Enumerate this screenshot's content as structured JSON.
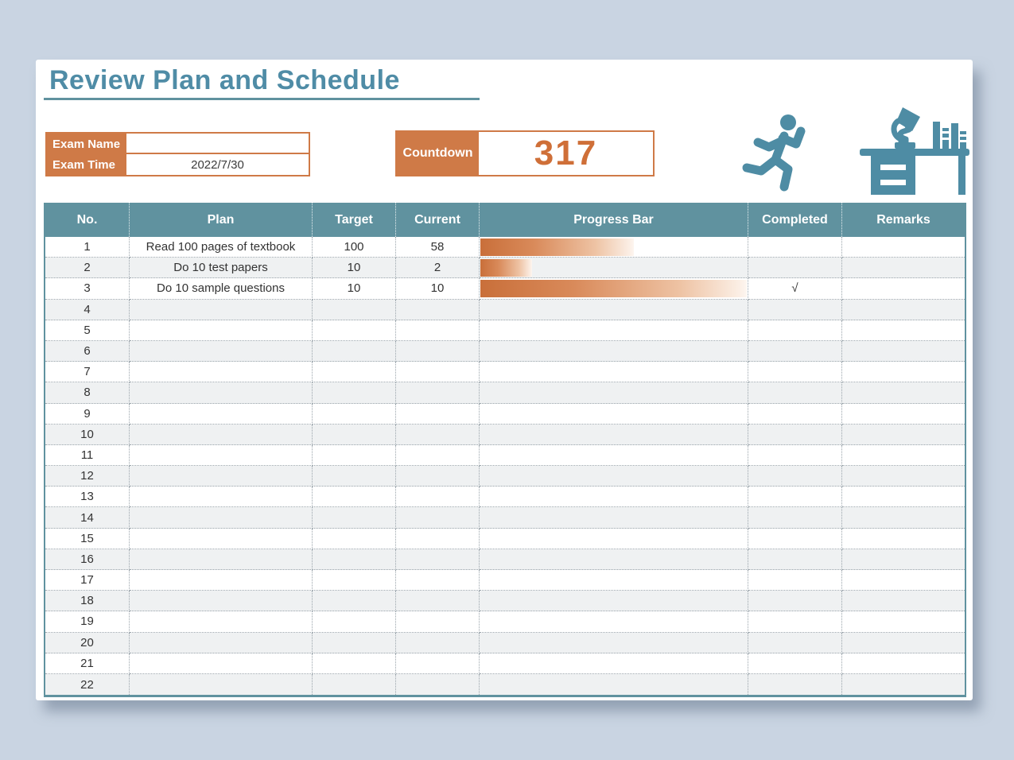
{
  "page": {
    "title": "Review Plan and Schedule"
  },
  "exam_info": {
    "name_label": "Exam Name",
    "name_value": "",
    "time_label": "Exam Time",
    "time_value": "2022/7/30"
  },
  "countdown": {
    "label": "Countdown",
    "value": "317"
  },
  "icons": [
    {
      "name": "runner-icon"
    },
    {
      "name": "study-desk-icon"
    }
  ],
  "colors": {
    "background": "#c9d4e2",
    "card": "#ffffff",
    "teal_header": "#60929f",
    "teal_title": "#4f8ca6",
    "teal_icon": "#4e8ca4",
    "orange": "#cf7a47",
    "orange_number": "#cf6f38",
    "bar_start": "#c96f3a",
    "bar_end": "#fdf6f0",
    "row_alt": "#eff1f2"
  },
  "table": {
    "columns": [
      "No.",
      "Plan",
      "Target",
      "Current",
      "Progress Bar",
      "Completed",
      "Remarks"
    ],
    "rows": [
      {
        "no": "1",
        "plan": "Read 100 pages of textbook",
        "target": "100",
        "current": "58",
        "progress_pct": 58,
        "completed": "",
        "remarks": ""
      },
      {
        "no": "2",
        "plan": "Do 10 test papers",
        "target": "10",
        "current": "2",
        "progress_pct": 20,
        "completed": "",
        "remarks": ""
      },
      {
        "no": "3",
        "plan": "Do 10 sample questions",
        "target": "10",
        "current": "10",
        "progress_pct": 100,
        "completed": "√",
        "remarks": ""
      },
      {
        "no": "4",
        "plan": "",
        "target": "",
        "current": "",
        "progress_pct": 0,
        "completed": "",
        "remarks": ""
      },
      {
        "no": "5",
        "plan": "",
        "target": "",
        "current": "",
        "progress_pct": 0,
        "completed": "",
        "remarks": ""
      },
      {
        "no": "6",
        "plan": "",
        "target": "",
        "current": "",
        "progress_pct": 0,
        "completed": "",
        "remarks": ""
      },
      {
        "no": "7",
        "plan": "",
        "target": "",
        "current": "",
        "progress_pct": 0,
        "completed": "",
        "remarks": ""
      },
      {
        "no": "8",
        "plan": "",
        "target": "",
        "current": "",
        "progress_pct": 0,
        "completed": "",
        "remarks": ""
      },
      {
        "no": "9",
        "plan": "",
        "target": "",
        "current": "",
        "progress_pct": 0,
        "completed": "",
        "remarks": ""
      },
      {
        "no": "10",
        "plan": "",
        "target": "",
        "current": "",
        "progress_pct": 0,
        "completed": "",
        "remarks": ""
      },
      {
        "no": "11",
        "plan": "",
        "target": "",
        "current": "",
        "progress_pct": 0,
        "completed": "",
        "remarks": ""
      },
      {
        "no": "12",
        "plan": "",
        "target": "",
        "current": "",
        "progress_pct": 0,
        "completed": "",
        "remarks": ""
      },
      {
        "no": "13",
        "plan": "",
        "target": "",
        "current": "",
        "progress_pct": 0,
        "completed": "",
        "remarks": ""
      },
      {
        "no": "14",
        "plan": "",
        "target": "",
        "current": "",
        "progress_pct": 0,
        "completed": "",
        "remarks": ""
      },
      {
        "no": "15",
        "plan": "",
        "target": "",
        "current": "",
        "progress_pct": 0,
        "completed": "",
        "remarks": ""
      },
      {
        "no": "16",
        "plan": "",
        "target": "",
        "current": "",
        "progress_pct": 0,
        "completed": "",
        "remarks": ""
      },
      {
        "no": "17",
        "plan": "",
        "target": "",
        "current": "",
        "progress_pct": 0,
        "completed": "",
        "remarks": ""
      },
      {
        "no": "18",
        "plan": "",
        "target": "",
        "current": "",
        "progress_pct": 0,
        "completed": "",
        "remarks": ""
      },
      {
        "no": "19",
        "plan": "",
        "target": "",
        "current": "",
        "progress_pct": 0,
        "completed": "",
        "remarks": ""
      },
      {
        "no": "20",
        "plan": "",
        "target": "",
        "current": "",
        "progress_pct": 0,
        "completed": "",
        "remarks": ""
      },
      {
        "no": "21",
        "plan": "",
        "target": "",
        "current": "",
        "progress_pct": 0,
        "completed": "",
        "remarks": ""
      },
      {
        "no": "22",
        "plan": "",
        "target": "",
        "current": "",
        "progress_pct": 0,
        "completed": "",
        "remarks": ""
      }
    ]
  }
}
